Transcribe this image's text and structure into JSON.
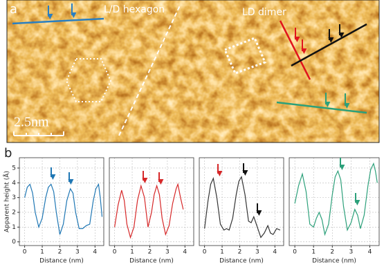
{
  "image": {
    "panel_label": "a",
    "hexagon_label": "L/D hexagon",
    "dimer_label": "LD dimer",
    "scale_bar": "2.5nm"
  },
  "panel_b_label": "b",
  "chart_data": [
    {
      "type": "line",
      "y_label": "Apparent height (Å)",
      "x_label": "Distance (nm)",
      "x": [
        0,
        0.15,
        0.3,
        0.45,
        0.6,
        0.8,
        1.0,
        1.2,
        1.35,
        1.5,
        1.65,
        1.8,
        2.0,
        2.2,
        2.4,
        2.6,
        2.75,
        2.9,
        3.1,
        3.3,
        3.5,
        3.7,
        3.9,
        4.05,
        4.2,
        4.3,
        4.4
      ],
      "series": [
        {
          "color": "#1f77b4",
          "values": [
            3.0,
            3.7,
            3.9,
            3.3,
            2.0,
            1.0,
            1.6,
            3.0,
            3.7,
            3.9,
            3.4,
            2.0,
            0.5,
            1.2,
            2.8,
            3.6,
            3.3,
            2.0,
            0.9,
            0.9,
            1.1,
            1.2,
            2.8,
            3.6,
            3.9,
            3.0,
            1.7
          ]
        }
      ],
      "xlim": [
        -0.3,
        4.5
      ],
      "ylim": [
        -0.25,
        5.7
      ],
      "xticks": [
        0,
        1,
        2,
        3,
        4
      ],
      "yticks": [
        0,
        1,
        2,
        3,
        4,
        5
      ],
      "grid": true
    },
    {
      "type": "line",
      "x_label": "Distance (nm)",
      "x": [
        0,
        0.2,
        0.4,
        0.55,
        0.7,
        0.9,
        1.1,
        1.3,
        1.5,
        1.7,
        1.9,
        2.1,
        2.25,
        2.4,
        2.55,
        2.7,
        2.9,
        3.1,
        3.3,
        3.5,
        3.6,
        3.75,
        3.9
      ],
      "series": [
        {
          "color": "#d62728",
          "values": [
            1.0,
            2.5,
            3.5,
            2.8,
            1.2,
            0.3,
            1.0,
            2.8,
            3.8,
            3.0,
            1.0,
            2.0,
            3.2,
            3.8,
            3.2,
            1.6,
            0.5,
            1.1,
            2.6,
            3.6,
            3.9,
            3.0,
            2.2
          ]
        }
      ],
      "xlim": [
        -0.3,
        4.5
      ],
      "ylim": [
        -0.25,
        5.7
      ],
      "xticks": [
        0,
        1,
        2,
        3,
        4
      ],
      "yticks": [
        0,
        1,
        2,
        3,
        4,
        5
      ],
      "grid": true
    },
    {
      "type": "line",
      "x_label": "Distance (nm)",
      "x": [
        0,
        0.2,
        0.35,
        0.5,
        0.7,
        0.9,
        1.1,
        1.25,
        1.4,
        1.6,
        1.8,
        1.95,
        2.1,
        2.3,
        2.5,
        2.65,
        2.8,
        3.0,
        3.2,
        3.4,
        3.6,
        3.75,
        3.9,
        4.1,
        4.3
      ],
      "series": [
        {
          "color": "#333333",
          "values": [
            0.9,
            2.8,
            3.9,
            4.3,
            3.0,
            1.2,
            0.8,
            0.9,
            0.8,
            1.6,
            3.2,
            4.1,
            4.4,
            3.2,
            1.4,
            1.3,
            1.7,
            1.0,
            0.3,
            0.6,
            1.1,
            0.6,
            0.5,
            0.9,
            0.8
          ]
        }
      ],
      "xlim": [
        -0.3,
        4.5
      ],
      "ylim": [
        -0.25,
        5.7
      ],
      "xticks": [
        0,
        1,
        2,
        3,
        4
      ],
      "yticks": [
        0,
        1,
        2,
        3,
        4,
        5
      ],
      "grid": true
    },
    {
      "type": "line",
      "x_label": "Distance (nm)",
      "x": [
        0,
        0.2,
        0.4,
        0.6,
        0.8,
        1.0,
        1.15,
        1.3,
        1.45,
        1.6,
        1.8,
        2.0,
        2.15,
        2.3,
        2.45,
        2.6,
        2.8,
        3.0,
        3.2,
        3.35,
        3.5,
        3.7,
        3.9,
        4.05,
        4.2,
        4.3,
        4.4
      ],
      "series": [
        {
          "color": "#2ca07a",
          "values": [
            2.6,
            3.8,
            4.6,
            3.4,
            1.2,
            1.0,
            1.6,
            2.0,
            1.5,
            0.5,
            1.2,
            3.2,
            4.4,
            4.8,
            4.2,
            2.4,
            0.8,
            1.3,
            2.2,
            1.8,
            0.9,
            1.8,
            3.8,
            4.9,
            5.3,
            4.8,
            4.0
          ]
        }
      ],
      "xlim": [
        -0.3,
        4.5
      ],
      "ylim": [
        -0.25,
        5.7
      ],
      "xticks": [
        0,
        1,
        2,
        3,
        4
      ],
      "yticks": [
        0,
        1,
        2,
        3,
        4,
        5
      ],
      "grid": true
    }
  ]
}
